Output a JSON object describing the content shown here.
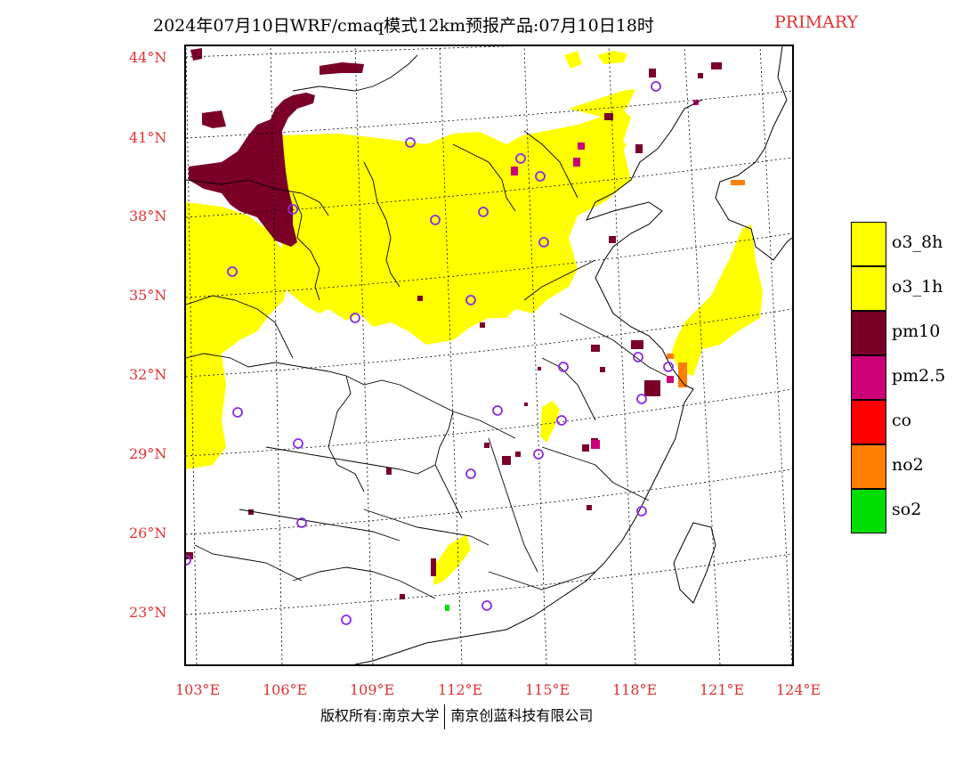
{
  "header": {
    "title": "2024年07月10日WRF/cmaq模式12km预报产品:07月10日18时",
    "mode": "PRIMARY"
  },
  "map": {
    "lat_labels": [
      "44°N",
      "41°N",
      "38°N",
      "35°N",
      "32°N",
      "29°N",
      "26°N",
      "23°N"
    ],
    "lon_labels": [
      "103°E",
      "106°E",
      "109°E",
      "112°E",
      "115°E",
      "118°E",
      "121°E",
      "124°E"
    ],
    "colors": {
      "o3_8h": "#ffff00",
      "o3_1h": "#ffff00",
      "pm10": "#7a0028",
      "pm25": "#cc0077",
      "co": "#ff0000",
      "no2": "#ff7f00",
      "so2": "#00dd00",
      "station": "#8a2be2",
      "boundary": "#000000"
    }
  },
  "legend": {
    "items": [
      {
        "label": "o3_8h",
        "color": "#ffff00"
      },
      {
        "label": "o3_1h",
        "color": "#ffff00"
      },
      {
        "label": "pm10",
        "color": "#7a0028"
      },
      {
        "label": "pm2.5",
        "color": "#cc0077"
      },
      {
        "label": "co",
        "color": "#ff0000"
      },
      {
        "label": "no2",
        "color": "#ff7f00"
      },
      {
        "label": "so2",
        "color": "#00dd00"
      }
    ]
  },
  "footer": {
    "copyright": "版权所有:南京大学",
    "company": "南京创蓝科技有限公司"
  }
}
